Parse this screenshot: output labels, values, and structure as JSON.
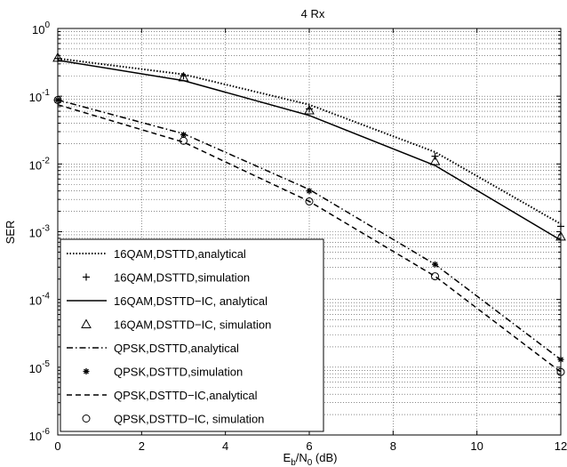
{
  "chart_data": {
    "type": "line",
    "title": "4 Rx",
    "xlabel": {
      "main": "E",
      "sub1": "b",
      "mid": "/N",
      "sub2": "0",
      "tail": " (dB)"
    },
    "ylabel": "SER",
    "xlim": [
      0,
      12
    ],
    "ylim": [
      1e-06,
      1
    ],
    "yscale": "log",
    "grid": true,
    "legend_position": "bottom-left",
    "x_ticks": [
      "0",
      "2",
      "4",
      "6",
      "8",
      "10",
      "12"
    ],
    "y_ticks": [
      {
        "base": "10",
        "exp": "0"
      },
      {
        "base": "10",
        "exp": "-1"
      },
      {
        "base": "10",
        "exp": "-2"
      },
      {
        "base": "10",
        "exp": "-3"
      },
      {
        "base": "10",
        "exp": "-4"
      },
      {
        "base": "10",
        "exp": "-5"
      },
      {
        "base": "10",
        "exp": "-6"
      }
    ],
    "series": [
      {
        "name": "16QAM,DSTTD,analytical",
        "style": "dotted",
        "marker": "none",
        "x": [
          0,
          3,
          6,
          9,
          12
        ],
        "y": [
          0.36,
          0.21,
          0.075,
          0.015,
          0.0013
        ]
      },
      {
        "name": "16QAM,DSTTD,simulation",
        "style": "none",
        "marker": "plus",
        "x": [
          0,
          3,
          6,
          9,
          12
        ],
        "y": [
          0.36,
          0.2,
          0.065,
          0.013,
          0.0012
        ]
      },
      {
        "name": "16QAM,DSTTD−IC, analytical",
        "style": "solid",
        "marker": "none",
        "x": [
          0,
          3,
          6,
          9,
          12
        ],
        "y": [
          0.34,
          0.17,
          0.052,
          0.0095,
          0.00075
        ]
      },
      {
        "name": "16QAM,DSTTD−IC, simulation",
        "style": "none",
        "marker": "triangle",
        "x": [
          0,
          3,
          6,
          9,
          12
        ],
        "y": [
          0.37,
          0.19,
          0.062,
          0.011,
          0.00085
        ]
      },
      {
        "name": "QPSK,DSTTD,analytical",
        "style": "dashdot",
        "marker": "none",
        "x": [
          0,
          3,
          6,
          9,
          12
        ],
        "y": [
          0.088,
          0.028,
          0.0042,
          0.00033,
          1.3e-05
        ]
      },
      {
        "name": "QPSK,DSTTD,simulation",
        "style": "none",
        "marker": "star",
        "x": [
          0,
          3,
          6,
          9,
          12
        ],
        "y": [
          0.088,
          0.027,
          0.004,
          0.00033,
          1.3e-05
        ]
      },
      {
        "name": "QPSK,DSTTD−IC,analytical",
        "style": "dashed",
        "marker": "none",
        "x": [
          0,
          3,
          6,
          9,
          12
        ],
        "y": [
          0.075,
          0.021,
          0.0028,
          0.00022,
          8.5e-06
        ]
      },
      {
        "name": "QPSK,DSTTD−IC, simulation",
        "style": "none",
        "marker": "circle",
        "x": [
          0,
          3,
          6,
          9,
          12
        ],
        "y": [
          0.088,
          0.022,
          0.0028,
          0.00022,
          8.5e-06
        ]
      }
    ]
  }
}
